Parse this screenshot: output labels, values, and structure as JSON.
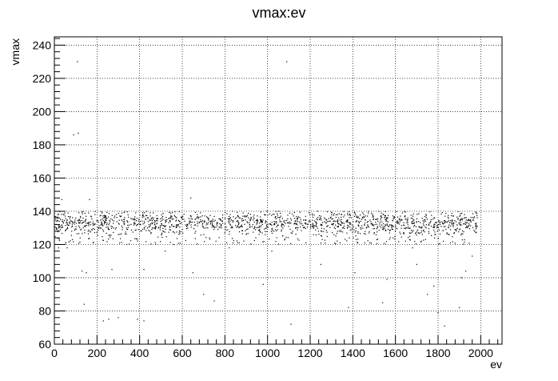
{
  "chart_data": {
    "type": "scatter",
    "title": "vmax:ev",
    "xlabel": "ev",
    "ylabel": "vmax",
    "xlim": [
      0,
      2100
    ],
    "ylim": [
      60,
      245
    ],
    "grid": true,
    "x_major_ticks": [
      0,
      200,
      400,
      600,
      800,
      1000,
      1200,
      1400,
      1600,
      1800,
      2000
    ],
    "x_tick_labels": [
      "0",
      "200",
      "400",
      "600",
      "800",
      "1000",
      "1200",
      "1400",
      "1600",
      "1800",
      "2000"
    ],
    "y_major_ticks": [
      60,
      80,
      100,
      120,
      140,
      160,
      180,
      200,
      220,
      240
    ],
    "y_tick_labels": [
      "60",
      "80",
      "100",
      "120",
      "140",
      "160",
      "180",
      "200",
      "220",
      "240"
    ],
    "marker_color": "#000000",
    "series": [
      {
        "points": [
          [
            108,
            230
          ],
          [
            1090,
            230
          ],
          [
            112,
            187
          ],
          [
            90,
            186
          ],
          [
            640,
            148
          ],
          [
            35,
            147
          ],
          [
            165,
            147
          ],
          [
            20,
            118
          ],
          [
            60,
            118
          ],
          [
            130,
            104
          ],
          [
            150,
            103
          ],
          [
            270,
            105
          ],
          [
            420,
            105
          ],
          [
            520,
            116
          ],
          [
            650,
            103
          ],
          [
            700,
            90
          ],
          [
            750,
            86
          ],
          [
            820,
            118
          ],
          [
            980,
            96
          ],
          [
            1020,
            116
          ],
          [
            1250,
            108
          ],
          [
            1380,
            82
          ],
          [
            1410,
            103
          ],
          [
            1560,
            99
          ],
          [
            1540,
            85
          ],
          [
            1600,
            109
          ],
          [
            1680,
            118
          ],
          [
            1700,
            108
          ],
          [
            1780,
            95
          ],
          [
            1800,
            79
          ],
          [
            1830,
            71
          ],
          [
            1900,
            82
          ],
          [
            1910,
            100
          ],
          [
            1930,
            104
          ],
          [
            1960,
            113
          ],
          [
            230,
            74
          ],
          [
            255,
            75
          ],
          [
            300,
            76
          ],
          [
            390,
            75
          ],
          [
            420,
            74
          ],
          [
            1110,
            72
          ],
          [
            140,
            84
          ],
          [
            1750,
            90
          ],
          [
            860,
            121
          ],
          [
            1180,
            121
          ],
          [
            1480,
            121
          ],
          [
            560,
            120
          ],
          [
            340,
            120
          ],
          [
            1340,
            121
          ]
        ],
        "band": {
          "x_range": [
            0,
            1985
          ],
          "y_range": [
            120,
            140
          ],
          "y_center": 133,
          "count": 1700
        }
      }
    ]
  }
}
